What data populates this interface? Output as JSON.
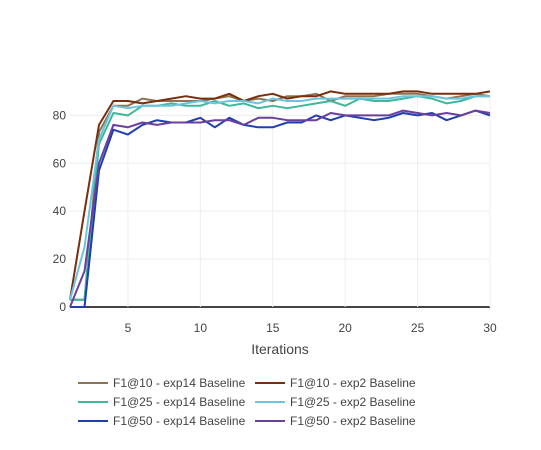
{
  "chart_data": {
    "type": "line",
    "xlabel": "Iterations",
    "ylabel": "",
    "xlim": [
      1,
      30
    ],
    "ylim": [
      0,
      100
    ],
    "xticks": [
      5,
      10,
      15,
      20,
      25,
      30
    ],
    "yticks": [
      0,
      20,
      40,
      60,
      80
    ],
    "grid": true,
    "legend_placement": "bottom",
    "x": [
      1,
      2,
      3,
      4,
      5,
      6,
      7,
      8,
      9,
      10,
      11,
      12,
      13,
      14,
      15,
      16,
      17,
      18,
      19,
      20,
      21,
      22,
      23,
      24,
      25,
      26,
      27,
      28,
      29,
      30
    ],
    "series": [
      {
        "name": "F1@10 - exp14 Baseline",
        "color": "#8B7355",
        "values": [
          3,
          3,
          73,
          84,
          84,
          87,
          86,
          86,
          86,
          86,
          87,
          88,
          86,
          87,
          86,
          88,
          88,
          89,
          86,
          88,
          88,
          88,
          89,
          89,
          89,
          88,
          87,
          88,
          89,
          88
        ]
      },
      {
        "name": "F1@10 - exp2 Baseline",
        "color": "#7A2E0E",
        "values": [
          3,
          40,
          76,
          86,
          86,
          85,
          86,
          87,
          88,
          87,
          87,
          89,
          86,
          88,
          89,
          87,
          88,
          88,
          90,
          89,
          89,
          89,
          89,
          90,
          90,
          89,
          89,
          89,
          89,
          90
        ]
      },
      {
        "name": "F1@25 - exp14 Baseline",
        "color": "#3DB89A",
        "values": [
          3,
          3,
          68,
          81,
          80,
          84,
          84,
          85,
          84,
          84,
          86,
          84,
          85,
          83,
          84,
          83,
          84,
          85,
          86,
          84,
          87,
          86,
          86,
          87,
          88,
          87,
          85,
          86,
          88,
          88
        ]
      },
      {
        "name": "F1@25 - exp2 Baseline",
        "color": "#6CC5DF",
        "values": [
          3,
          25,
          70,
          84,
          83,
          84,
          84,
          84,
          85,
          86,
          85,
          86,
          86,
          85,
          87,
          86,
          86,
          87,
          87,
          87,
          87,
          87,
          87,
          88,
          88,
          88,
          87,
          87,
          88,
          88
        ]
      },
      {
        "name": "F1@50 - exp14 Baseline",
        "color": "#1F3FB0",
        "values": [
          0,
          0,
          57,
          74,
          72,
          76,
          78,
          77,
          77,
          79,
          75,
          79,
          76,
          75,
          75,
          77,
          77,
          80,
          78,
          80,
          79,
          78,
          79,
          81,
          80,
          81,
          78,
          80,
          82,
          80
        ]
      },
      {
        "name": "F1@50 - exp2 Baseline",
        "color": "#6A3F9E",
        "values": [
          0,
          15,
          60,
          76,
          75,
          77,
          76,
          77,
          77,
          77,
          78,
          78,
          76,
          79,
          79,
          78,
          78,
          78,
          81,
          80,
          80,
          80,
          80,
          82,
          81,
          80,
          81,
          80,
          82,
          81
        ]
      }
    ]
  }
}
